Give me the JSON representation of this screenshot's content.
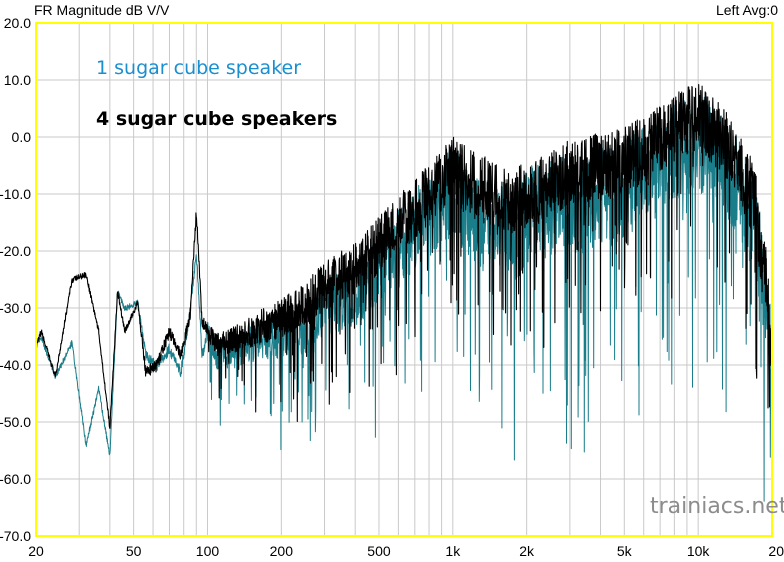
{
  "header": {
    "title": "FR Magnitude dB V/V",
    "status": "Left  Avg:0"
  },
  "watermark": "trainiacs.net",
  "colors": {
    "plot_background": "#ffffff",
    "plot_border": "#ffff00",
    "grid": "#c9c9c9",
    "series_1": "#1a7d8a",
    "series_4": "#000000",
    "legend_1": "#1a8fd0",
    "legend_4": "#000000"
  },
  "chart_data": {
    "type": "line",
    "x_scale": "log",
    "xlim": [
      20,
      20000
    ],
    "ylim": [
      -70,
      20
    ],
    "grid": true,
    "legend_placement": "top-left",
    "x_ticks": [
      "20",
      "50",
      "100",
      "200",
      "500",
      "1k",
      "2k",
      "5k",
      "10k",
      "20"
    ],
    "x_tick_values": [
      20,
      50,
      100,
      200,
      500,
      1000,
      2000,
      5000,
      10000,
      20000
    ],
    "y_ticks": [
      "20.0",
      "10.0",
      "0.0",
      "-10.0",
      "-20.0",
      "-30.0",
      "-40.0",
      "-50.0",
      "-60.0",
      "-70.0"
    ],
    "y_tick_values": [
      20,
      10,
      0,
      -10,
      -20,
      -30,
      -40,
      -50,
      -60,
      -70
    ],
    "series": [
      {
        "name": "1 sugar cube speaker",
        "x": [
          20,
          21,
          24,
          28,
          32,
          36,
          40,
          43,
          46,
          52,
          56,
          62,
          70,
          78,
          85,
          90,
          95,
          100,
          110,
          130,
          160,
          200,
          250,
          300,
          400,
          500,
          600,
          700,
          800,
          900,
          1000,
          1100,
          1300,
          1500,
          1800,
          2000,
          2500,
          3000,
          4000,
          5000,
          6000,
          7000,
          8000,
          9000,
          10000,
          11000,
          13000,
          15000,
          17000,
          19000,
          20000
        ],
        "y": [
          -36,
          -35,
          -42,
          -36,
          -54,
          -44,
          -56,
          -27,
          -30,
          -29,
          -38,
          -40,
          -37,
          -41,
          -30,
          -20,
          -38,
          -34,
          -38,
          -37,
          -35,
          -34,
          -33,
          -29,
          -27,
          -22,
          -18,
          -15,
          -12,
          -10,
          -8,
          -10,
          -14,
          -14,
          -15,
          -12,
          -11,
          -10,
          -9,
          -8,
          -5,
          -3,
          -1,
          0,
          1,
          -1,
          -4,
          -8,
          -13,
          -28,
          -38
        ],
        "spread": [
          1,
          1,
          1,
          1,
          1,
          1,
          1,
          1,
          1,
          1,
          2,
          2,
          2,
          2,
          2,
          2,
          2,
          4,
          5,
          6,
          7,
          8,
          9,
          10,
          11,
          12,
          13,
          14,
          15,
          15,
          16,
          16,
          16,
          16,
          17,
          17,
          17,
          18,
          18,
          18,
          18,
          18,
          18,
          18,
          18,
          18,
          18,
          18,
          18,
          15,
          12
        ]
      },
      {
        "name": "4 sugar cube speakers",
        "x": [
          20,
          21,
          24,
          28,
          32,
          36,
          40,
          43,
          46,
          52,
          56,
          62,
          70,
          78,
          85,
          90,
          95,
          100,
          110,
          130,
          160,
          200,
          250,
          300,
          400,
          500,
          600,
          700,
          800,
          900,
          1000,
          1100,
          1300,
          1500,
          1800,
          2000,
          2500,
          3000,
          4000,
          5000,
          6000,
          7000,
          8000,
          9000,
          10000,
          11000,
          13000,
          15000,
          17000,
          19000,
          20000
        ],
        "y": [
          -37,
          -34,
          -42,
          -25,
          -24,
          -34,
          -51,
          -27,
          -34,
          -29,
          -41,
          -40,
          -34,
          -38,
          -31,
          -13,
          -32,
          -34,
          -36,
          -35,
          -33,
          -31,
          -29,
          -25,
          -22,
          -18,
          -14,
          -12,
          -9,
          -7,
          -4,
          -6,
          -8,
          -9,
          -10,
          -9,
          -7,
          -5,
          -4,
          -3,
          -1,
          1,
          3,
          4,
          5,
          3,
          0,
          -5,
          -10,
          -25,
          -38
        ],
        "spread": [
          1,
          1,
          1,
          1,
          1,
          1,
          1,
          1,
          1,
          1,
          2,
          2,
          2,
          2,
          2,
          2,
          2,
          3,
          4,
          5,
          6,
          7,
          8,
          9,
          9,
          10,
          10,
          11,
          11,
          11,
          12,
          12,
          12,
          12,
          12,
          12,
          12,
          12,
          12,
          12,
          12,
          12,
          12,
          12,
          12,
          12,
          12,
          12,
          13,
          13,
          12
        ]
      }
    ]
  }
}
